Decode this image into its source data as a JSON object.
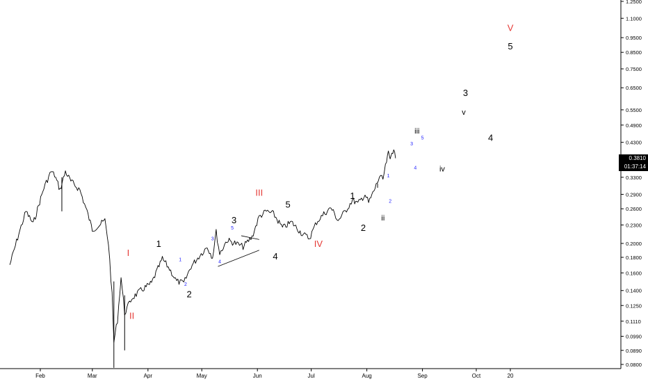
{
  "chart_data": {
    "type": "line",
    "title": "",
    "xlabel": "",
    "ylabel": "",
    "y_scale": "log",
    "ylim": [
      0.076,
      1.31
    ],
    "x_ticks": [
      "Feb",
      "Mar",
      "Apr",
      "May",
      "Jun",
      "Jul",
      "Aug",
      "Sep",
      "Oct",
      "20"
    ],
    "y_ticks": [
      "1.2500",
      "1.1000",
      "0.9500",
      "0.8500",
      "0.7500",
      "0.6500",
      "0.5500",
      "0.4900",
      "0.4300",
      "0.3700",
      "0.3300",
      "0.2900",
      "0.2600",
      "0.2300",
      "0.2000",
      "0.1800",
      "0.1600",
      "0.1400",
      "0.1250",
      "0.1110",
      "0.0990",
      "0.0890",
      "0.0800"
    ],
    "last_price": "0.3810",
    "countdown": "01:37:14",
    "series": [
      {
        "values_note": "",
        "points": [
          [
            "2020-01-15",
            0.17
          ],
          [
            "2020-01-20",
            0.215
          ],
          [
            "2020-01-24",
            0.255
          ],
          [
            "2020-01-28",
            0.232
          ],
          [
            "2020-02-03",
            0.305
          ],
          [
            "2020-02-07",
            0.345
          ],
          [
            "2020-02-09",
            0.335
          ],
          [
            "2020-02-12",
            0.3
          ],
          [
            "2020-02-15",
            0.345
          ],
          [
            "2020-02-18",
            0.32
          ],
          [
            "2020-02-23",
            0.3
          ],
          [
            "2020-02-27",
            0.255
          ],
          [
            "2020-03-01",
            0.222
          ],
          [
            "2020-03-05",
            0.23
          ],
          [
            "2020-03-08",
            0.238
          ],
          [
            "2020-03-10",
            0.2
          ],
          [
            "2020-03-12",
            0.135
          ],
          [
            "2020-03-13",
            0.095
          ],
          [
            "2020-03-15",
            0.112
          ],
          [
            "2020-03-17",
            0.155
          ],
          [
            "2020-03-19",
            0.118
          ],
          [
            "2020-03-23",
            0.132
          ],
          [
            "2020-03-28",
            0.14
          ],
          [
            "2020-04-03",
            0.148
          ],
          [
            "2020-04-09",
            0.178
          ],
          [
            "2020-04-13",
            0.165
          ],
          [
            "2020-04-17",
            0.15
          ],
          [
            "2020-04-21",
            0.148
          ],
          [
            "2020-04-25",
            0.168
          ],
          [
            "2020-04-30",
            0.183
          ],
          [
            "2020-05-04",
            0.195
          ],
          [
            "2020-05-07",
            0.18
          ],
          [
            "2020-05-09",
            0.218
          ],
          [
            "2020-05-11",
            0.185
          ],
          [
            "2020-05-15",
            0.205
          ],
          [
            "2020-05-20",
            0.2
          ],
          [
            "2020-05-24",
            0.195
          ],
          [
            "2020-05-29",
            0.21
          ],
          [
            "2020-06-02",
            0.245
          ],
          [
            "2020-06-06",
            0.255
          ],
          [
            "2020-06-10",
            0.25
          ],
          [
            "2020-06-15",
            0.225
          ],
          [
            "2020-06-20",
            0.235
          ],
          [
            "2020-06-26",
            0.215
          ],
          [
            "2020-06-30",
            0.208
          ],
          [
            "2020-07-04",
            0.235
          ],
          [
            "2020-07-08",
            0.25
          ],
          [
            "2020-07-12",
            0.262
          ],
          [
            "2020-07-16",
            0.238
          ],
          [
            "2020-07-20",
            0.255
          ],
          [
            "2020-07-24",
            0.278
          ],
          [
            "2020-07-27",
            0.27
          ],
          [
            "2020-07-31",
            0.29
          ],
          [
            "2020-08-02",
            0.272
          ],
          [
            "2020-08-05",
            0.298
          ],
          [
            "2020-08-08",
            0.33
          ],
          [
            "2020-08-10",
            0.325
          ],
          [
            "2020-08-12",
            0.372
          ],
          [
            "2020-08-13",
            0.395
          ],
          [
            "2020-08-14",
            0.378
          ],
          [
            "2020-08-15",
            0.405
          ],
          [
            "2020-08-16",
            0.4
          ],
          [
            "2020-08-17",
            0.381
          ]
        ]
      }
    ],
    "annotations": [
      {
        "text": "I",
        "x": "2020-03-21",
        "y": 0.182,
        "color": "#e53935",
        "size": "large"
      },
      {
        "text": "II",
        "x": "2020-03-23",
        "y": 0.113,
        "color": "#e53935",
        "size": "large"
      },
      {
        "text": "III",
        "x": "2020-06-02",
        "y": 0.287,
        "color": "#e53935",
        "size": "large"
      },
      {
        "text": "IV",
        "x": "2020-07-05",
        "y": 0.195,
        "color": "#e53935",
        "size": "large"
      },
      {
        "text": "V",
        "x": "2020-10-20",
        "y": 1.0,
        "color": "#e53935",
        "size": "large"
      },
      {
        "text": "1",
        "x": "2020-04-07",
        "y": 0.195,
        "color": "#000000",
        "size": "large"
      },
      {
        "text": "2",
        "x": "2020-04-24",
        "y": 0.133,
        "color": "#000000",
        "size": "large"
      },
      {
        "text": "3",
        "x": "2020-05-19",
        "y": 0.233,
        "color": "#000000",
        "size": "large"
      },
      {
        "text": "4",
        "x": "2020-06-11",
        "y": 0.177,
        "color": "#000000",
        "size": "large"
      },
      {
        "text": "5",
        "x": "2020-06-18",
        "y": 0.262,
        "color": "#000000",
        "size": "large"
      },
      {
        "text": "1",
        "x": "2020-07-24",
        "y": 0.28,
        "color": "#000000",
        "size": "large"
      },
      {
        "text": "2",
        "x": "2020-07-30",
        "y": 0.22,
        "color": "#000000",
        "size": "large"
      },
      {
        "text": "3",
        "x": "2020-09-25",
        "y": 0.61,
        "color": "#000000",
        "size": "large"
      },
      {
        "text": "4",
        "x": "2020-10-09",
        "y": 0.435,
        "color": "#000000",
        "size": "large"
      },
      {
        "text": "5",
        "x": "2020-10-20",
        "y": 0.87,
        "color": "#000000",
        "size": "large"
      },
      {
        "text": "i",
        "x": "2020-08-07",
        "y": 0.305,
        "color": "#000000",
        "size": "medium"
      },
      {
        "text": "ii",
        "x": "2020-08-10",
        "y": 0.238,
        "color": "#000000",
        "size": "medium"
      },
      {
        "text": "iii",
        "x": "2020-08-29",
        "y": 0.46,
        "color": "#000000",
        "size": "medium"
      },
      {
        "text": "iv",
        "x": "2020-09-12",
        "y": 0.345,
        "color": "#000000",
        "size": "medium"
      },
      {
        "text": "v",
        "x": "2020-09-24",
        "y": 0.53,
        "color": "#000000",
        "size": "medium"
      },
      {
        "text": "1",
        "x": "2020-04-19",
        "y": 0.175,
        "color": "#1e1eff",
        "size": "small"
      },
      {
        "text": "2",
        "x": "2020-04-22",
        "y": 0.145,
        "color": "#1e1eff",
        "size": "small"
      },
      {
        "text": "3",
        "x": "2020-05-07",
        "y": 0.205,
        "color": "#1e1eff",
        "size": "small"
      },
      {
        "text": "4",
        "x": "2020-05-11",
        "y": 0.172,
        "color": "#1e1eff",
        "size": "small"
      },
      {
        "text": "5",
        "x": "2020-05-18",
        "y": 0.222,
        "color": "#1e1eff",
        "size": "small"
      },
      {
        "text": "1",
        "x": "2020-08-13",
        "y": 0.33,
        "color": "#1e1eff",
        "size": "small"
      },
      {
        "text": "2",
        "x": "2020-08-14",
        "y": 0.272,
        "color": "#1e1eff",
        "size": "small"
      },
      {
        "text": "3",
        "x": "2020-08-26",
        "y": 0.42,
        "color": "#1e1eff",
        "size": "small"
      },
      {
        "text": "4",
        "x": "2020-08-28",
        "y": 0.35,
        "color": "#1e1eff",
        "size": "small"
      },
      {
        "text": "5",
        "x": "2020-09-01",
        "y": 0.44,
        "color": "#1e1eff",
        "size": "small"
      }
    ],
    "trendlines": [
      {
        "from": [
          "2020-05-10",
          0.168
        ],
        "to": [
          "2020-06-02",
          0.19
        ]
      },
      {
        "from": [
          "2020-05-23",
          0.212
        ],
        "to": [
          "2020-06-02",
          0.206
        ]
      }
    ],
    "grid": false,
    "legend": "none"
  }
}
